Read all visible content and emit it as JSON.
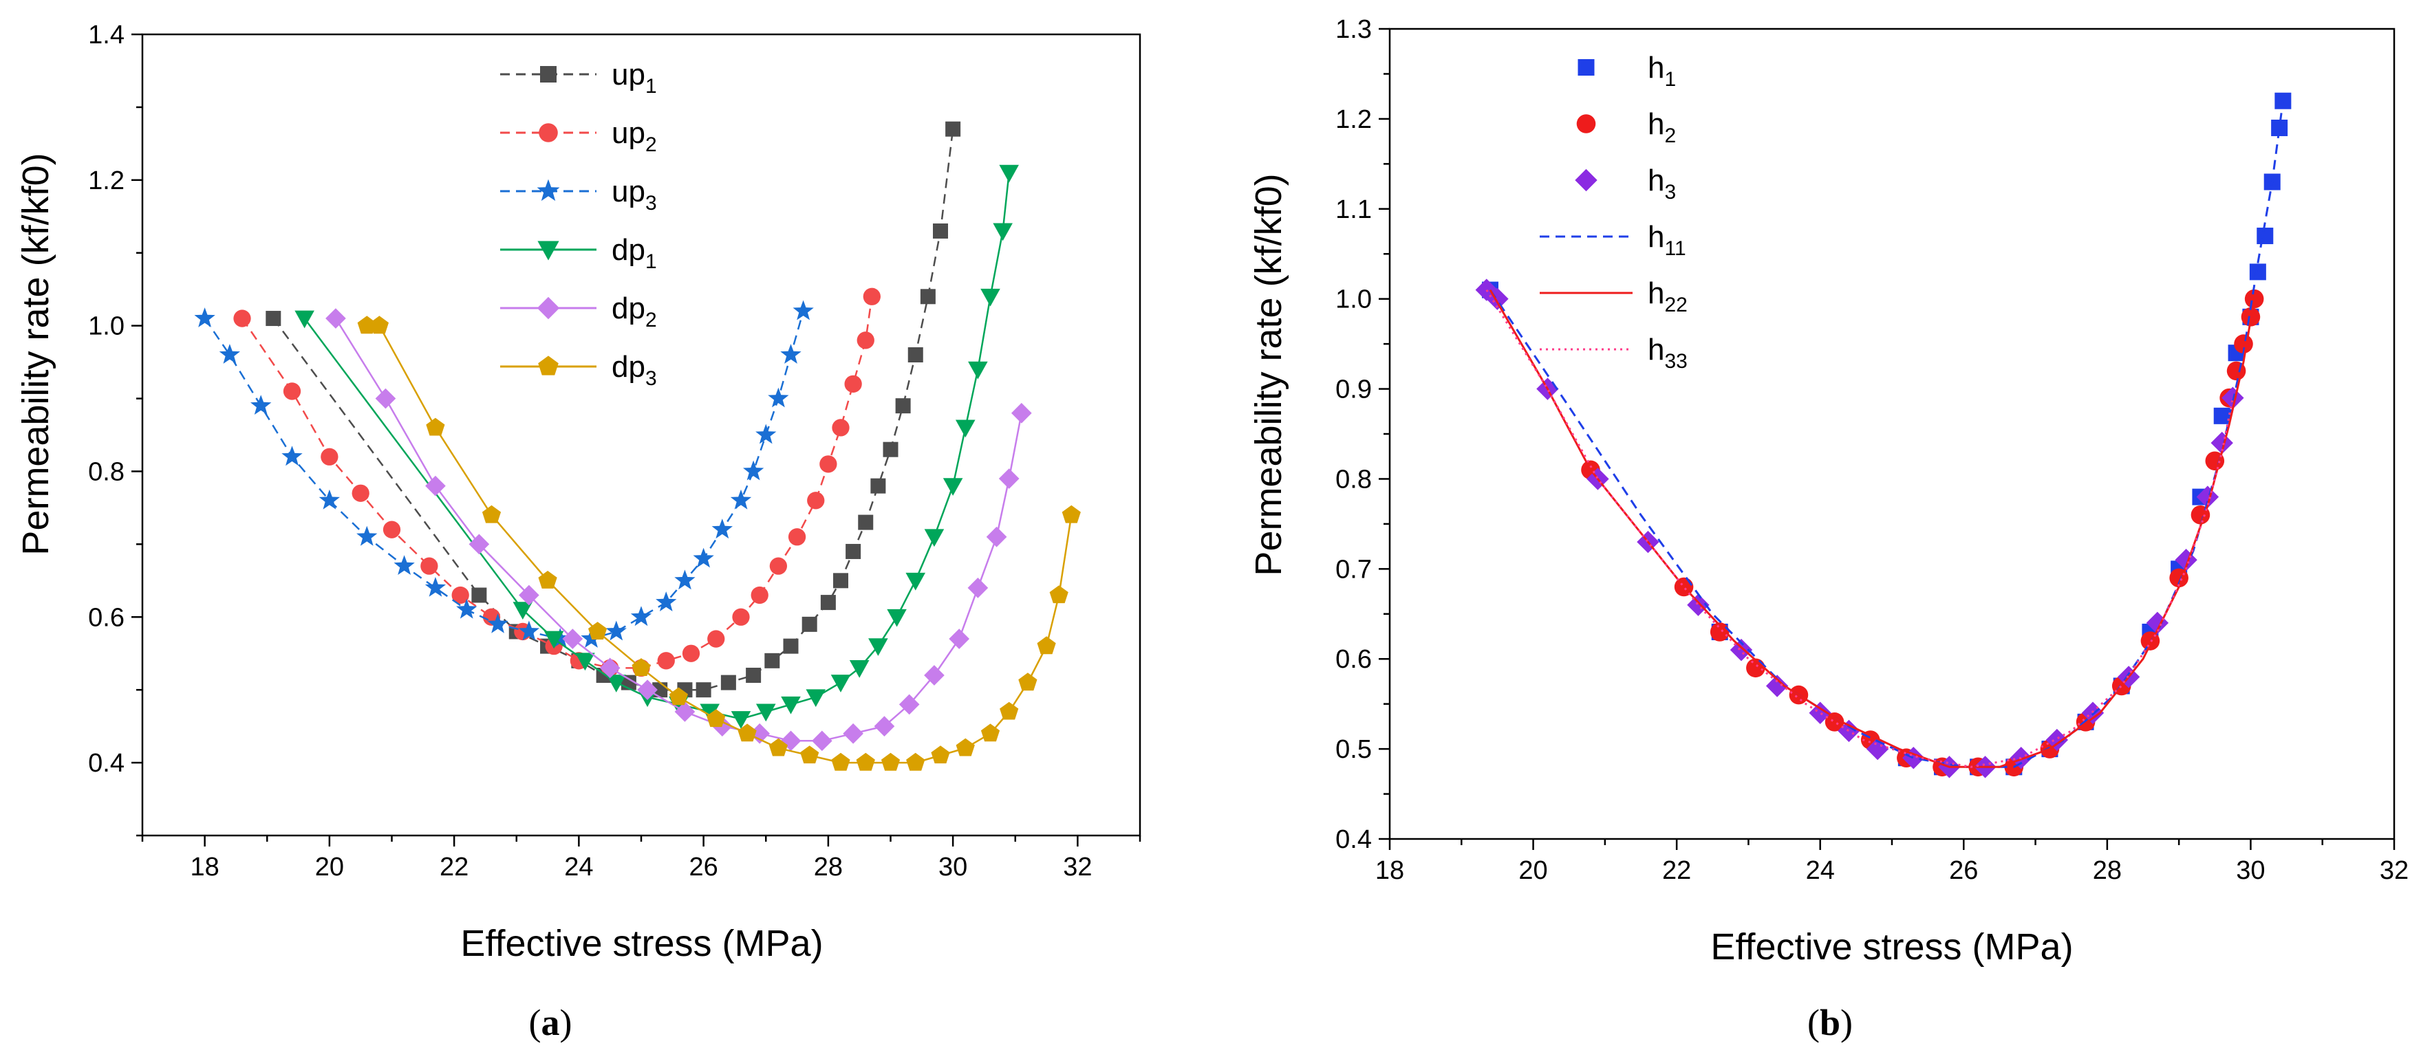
{
  "chart_data": [
    {
      "type": "line",
      "panel_caption": "a",
      "xlabel": "Effective stress (MPa)",
      "ylabel": "Permeability rate (kf/kf0)",
      "xlim": [
        17,
        33
      ],
      "ylim": [
        0.3,
        1.4
      ],
      "xticks": [
        18,
        20,
        22,
        24,
        26,
        28,
        30,
        32
      ],
      "yticks": [
        0.4,
        0.6,
        0.8,
        1.0,
        1.2,
        1.4
      ],
      "grid": false,
      "legend_position": "top-center",
      "series": [
        {
          "name": "up",
          "sub": "1",
          "color": "#4d4d4d",
          "marker": "square",
          "dash": true,
          "x": [
            19.1,
            22.4,
            23.0,
            23.5,
            24.0,
            24.4,
            24.8,
            25.3,
            25.7,
            26.0,
            26.4,
            26.8,
            27.1,
            27.4,
            27.7,
            28.0,
            28.2,
            28.4,
            28.6,
            28.8,
            29.0,
            29.2,
            29.4,
            29.6,
            29.8,
            30.0
          ],
          "y": [
            1.01,
            0.63,
            0.58,
            0.56,
            0.54,
            0.52,
            0.51,
            0.5,
            0.5,
            0.5,
            0.51,
            0.52,
            0.54,
            0.56,
            0.59,
            0.62,
            0.65,
            0.69,
            0.73,
            0.78,
            0.83,
            0.89,
            0.96,
            1.04,
            1.13,
            1.27
          ]
        },
        {
          "name": "up",
          "sub": "2",
          "color": "#f24a4a",
          "marker": "circle",
          "dash": true,
          "x": [
            18.6,
            19.4,
            20.0,
            20.5,
            21.0,
            21.6,
            22.1,
            22.6,
            23.1,
            23.6,
            24.0,
            24.5,
            25.0,
            25.4,
            25.8,
            26.2,
            26.6,
            26.9,
            27.2,
            27.5,
            27.8,
            28.0,
            28.2,
            28.4,
            28.6,
            28.7
          ],
          "y": [
            1.01,
            0.91,
            0.82,
            0.77,
            0.72,
            0.67,
            0.63,
            0.6,
            0.58,
            0.56,
            0.54,
            0.53,
            0.53,
            0.54,
            0.55,
            0.57,
            0.6,
            0.63,
            0.67,
            0.71,
            0.76,
            0.81,
            0.86,
            0.92,
            0.98,
            1.04
          ]
        },
        {
          "name": "up",
          "sub": "3",
          "color": "#1a6fd4",
          "marker": "star",
          "dash": true,
          "x": [
            18.0,
            18.4,
            18.9,
            19.4,
            20.0,
            20.6,
            21.2,
            21.7,
            22.2,
            22.7,
            23.2,
            23.7,
            24.2,
            24.6,
            25.0,
            25.4,
            25.7,
            26.0,
            26.3,
            26.6,
            26.8,
            27.0,
            27.2,
            27.4,
            27.6
          ],
          "y": [
            1.01,
            0.96,
            0.89,
            0.82,
            0.76,
            0.71,
            0.67,
            0.64,
            0.61,
            0.59,
            0.58,
            0.57,
            0.57,
            0.58,
            0.6,
            0.62,
            0.65,
            0.68,
            0.72,
            0.76,
            0.8,
            0.85,
            0.9,
            0.96,
            1.02
          ]
        },
        {
          "name": "dp",
          "sub": "1",
          "color": "#00a65a",
          "marker": "triangle-down",
          "dash": false,
          "x": [
            19.6,
            23.1,
            23.6,
            24.1,
            24.6,
            25.1,
            25.6,
            26.1,
            26.6,
            27.0,
            27.4,
            27.8,
            28.2,
            28.5,
            28.8,
            29.1,
            29.4,
            29.7,
            30.0,
            30.2,
            30.4,
            30.6,
            30.8,
            30.9
          ],
          "y": [
            1.01,
            0.61,
            0.57,
            0.54,
            0.51,
            0.49,
            0.48,
            0.47,
            0.46,
            0.47,
            0.48,
            0.49,
            0.51,
            0.53,
            0.56,
            0.6,
            0.65,
            0.71,
            0.78,
            0.86,
            0.94,
            1.04,
            1.13,
            1.21
          ]
        },
        {
          "name": "dp",
          "sub": "2",
          "color": "#c77dec",
          "marker": "diamond",
          "dash": false,
          "x": [
            20.1,
            20.9,
            21.7,
            22.4,
            23.2,
            23.9,
            24.5,
            25.1,
            25.7,
            26.3,
            26.9,
            27.4,
            27.9,
            28.4,
            28.9,
            29.3,
            29.7,
            30.1,
            30.4,
            30.7,
            30.9,
            31.1
          ],
          "y": [
            1.01,
            0.9,
            0.78,
            0.7,
            0.63,
            0.57,
            0.53,
            0.5,
            0.47,
            0.45,
            0.44,
            0.43,
            0.43,
            0.44,
            0.45,
            0.48,
            0.52,
            0.57,
            0.64,
            0.71,
            0.79,
            0.88
          ]
        },
        {
          "name": "dp",
          "sub": "3",
          "color": "#d9a000",
          "marker": "pentagon",
          "dash": false,
          "x": [
            20.6,
            20.8,
            21.7,
            22.6,
            23.5,
            24.3,
            25.0,
            25.6,
            26.2,
            26.7,
            27.2,
            27.7,
            28.2,
            28.6,
            29.0,
            29.4,
            29.8,
            30.2,
            30.6,
            30.9,
            31.2,
            31.5,
            31.7,
            31.9
          ],
          "y": [
            1.0,
            1.0,
            0.86,
            0.74,
            0.65,
            0.58,
            0.53,
            0.49,
            0.46,
            0.44,
            0.42,
            0.41,
            0.4,
            0.4,
            0.4,
            0.4,
            0.41,
            0.42,
            0.44,
            0.47,
            0.51,
            0.56,
            0.63,
            0.74
          ]
        }
      ]
    },
    {
      "type": "scatter",
      "panel_caption": "b",
      "xlabel": "Effective stress (MPa)",
      "ylabel": "Permeability rate (kf/kf0)",
      "xlim": [
        18,
        32
      ],
      "ylim": [
        0.4,
        1.3
      ],
      "xticks": [
        18,
        20,
        22,
        24,
        26,
        28,
        30,
        32
      ],
      "yticks": [
        0.4,
        0.5,
        0.6,
        0.7,
        0.8,
        0.9,
        1.0,
        1.1,
        1.2,
        1.3
      ],
      "grid": false,
      "legend_position": "top-left",
      "series": [
        {
          "name": "h",
          "sub": "1",
          "color": "#1f3fe8",
          "marker": "square",
          "x": [
            19.4,
            22.6,
            25.2,
            25.7,
            26.2,
            26.7,
            27.2,
            27.7,
            28.2,
            28.6,
            29.0,
            29.3,
            29.6,
            29.8,
            30.0,
            30.1,
            30.2,
            30.3,
            30.4,
            30.45
          ],
          "y": [
            1.01,
            0.63,
            0.49,
            0.48,
            0.48,
            0.48,
            0.5,
            0.53,
            0.57,
            0.63,
            0.7,
            0.78,
            0.87,
            0.94,
            0.98,
            1.03,
            1.07,
            1.13,
            1.19,
            1.22
          ]
        },
        {
          "name": "h",
          "sub": "2",
          "color": "#ee1c1c",
          "marker": "circle",
          "x": [
            20.8,
            22.1,
            22.6,
            23.1,
            23.7,
            24.2,
            24.7,
            25.2,
            25.7,
            26.2,
            26.7,
            27.2,
            27.7,
            28.2,
            28.6,
            29.0,
            29.3,
            29.5,
            29.7,
            29.8,
            29.9,
            30.0,
            30.05
          ],
          "y": [
            0.81,
            0.68,
            0.63,
            0.59,
            0.56,
            0.53,
            0.51,
            0.49,
            0.48,
            0.48,
            0.48,
            0.5,
            0.53,
            0.57,
            0.62,
            0.69,
            0.76,
            0.82,
            0.89,
            0.92,
            0.95,
            0.98,
            1.0
          ]
        },
        {
          "name": "h",
          "sub": "3",
          "color": "#8b2be2",
          "marker": "diamond",
          "x": [
            19.35,
            19.5,
            20.2,
            20.9,
            21.6,
            22.3,
            22.9,
            23.4,
            24.0,
            24.4,
            24.8,
            25.3,
            25.8,
            26.3,
            26.8,
            27.3,
            27.8,
            28.3,
            28.7,
            29.1,
            29.4,
            29.6,
            29.75
          ],
          "y": [
            1.01,
            1.0,
            0.9,
            0.8,
            0.73,
            0.66,
            0.61,
            0.57,
            0.54,
            0.52,
            0.5,
            0.49,
            0.48,
            0.48,
            0.49,
            0.51,
            0.54,
            0.58,
            0.64,
            0.71,
            0.78,
            0.84,
            0.89
          ]
        },
        {
          "name": "h",
          "sub": "11",
          "color": "#1f3fe8",
          "line": "dashed",
          "x": [
            19.4,
            20.5,
            21.5,
            22.5,
            23.5,
            24.5,
            25.3,
            26.0,
            26.7,
            27.4,
            28.1,
            28.7,
            29.2,
            29.6,
            29.9,
            30.1,
            30.3,
            30.45
          ],
          "y": [
            1.01,
            0.88,
            0.76,
            0.65,
            0.57,
            0.52,
            0.49,
            0.48,
            0.48,
            0.51,
            0.56,
            0.63,
            0.72,
            0.83,
            0.94,
            1.04,
            1.13,
            1.22
          ]
        },
        {
          "name": "h",
          "sub": "22",
          "color": "#ee1c1c",
          "line": "solid",
          "x": [
            19.4,
            20.2,
            20.8,
            21.5,
            22.1,
            22.8,
            23.5,
            24.3,
            25.1,
            25.8,
            26.5,
            27.2,
            27.9,
            28.5,
            29.0,
            29.4,
            29.7,
            29.9,
            30.05
          ],
          "y": [
            1.01,
            0.9,
            0.81,
            0.74,
            0.68,
            0.62,
            0.57,
            0.53,
            0.5,
            0.48,
            0.48,
            0.5,
            0.54,
            0.6,
            0.68,
            0.77,
            0.86,
            0.93,
            1.0
          ]
        },
        {
          "name": "h",
          "sub": "33",
          "color": "#ff3c8a",
          "line": "dotted",
          "x": [
            19.35,
            20.2,
            20.9,
            21.6,
            22.3,
            23.0,
            23.8,
            24.6,
            25.4,
            26.1,
            26.8,
            27.5,
            28.2,
            28.7,
            29.1,
            29.4,
            29.6,
            29.75
          ],
          "y": [
            1.01,
            0.9,
            0.8,
            0.73,
            0.66,
            0.6,
            0.55,
            0.51,
            0.49,
            0.48,
            0.49,
            0.52,
            0.57,
            0.63,
            0.7,
            0.77,
            0.83,
            0.89
          ]
        }
      ]
    }
  ]
}
